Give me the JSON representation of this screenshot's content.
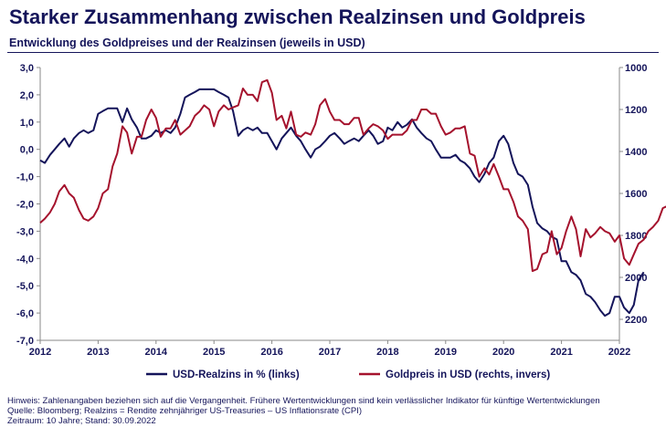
{
  "title": "Starker Zusammenhang zwischen Realzinsen und Goldpreis",
  "subtitle": "Entwicklung des Goldpreises und der Realzinsen (jeweils in USD)",
  "footnotes": [
    "Hinweis: Zahlenangaben beziehen sich auf die Vergangenheit. Frühere Wertentwicklungen sind kein verlässlicher Indikator für künftige Wertentwicklungen",
    "Quelle: Bloomberg; Realzins = Rendite zehnjähriger US-Treasuries – US Inflationsrate (CPI)",
    "Zeitraum: 10 Jahre; Stand: 30.09.2022"
  ],
  "colors": {
    "navy": "#14145a",
    "red": "#a5122d"
  },
  "chart_data": {
    "type": "line",
    "grid": false,
    "legend_position": "bottom",
    "x_ticks": [
      "2012",
      "2013",
      "2014",
      "2015",
      "2016",
      "2017",
      "2018",
      "2019",
      "2020",
      "2021",
      "2022"
    ],
    "y_left": {
      "ticks": [
        "3,0",
        "2,0",
        "1,0",
        "0,0",
        "-1,0",
        "-2,0",
        "-3,0",
        "-4,0",
        "-5,0",
        "-6,0",
        "-7,0"
      ],
      "range": [
        -7,
        3
      ]
    },
    "y_right": {
      "ticks": [
        "1000",
        "1200",
        "1400",
        "1600",
        "1800",
        "2000",
        "2200"
      ],
      "range": [
        1000,
        2300
      ],
      "inverted": true
    },
    "series": [
      {
        "name": "USD-Realzins in % (links)",
        "axis": "left",
        "color": "#14145a",
        "points": [
          [
            2012.0,
            -0.4
          ],
          [
            2012.08,
            -0.5
          ],
          [
            2012.17,
            -0.2
          ],
          [
            2012.25,
            0.0
          ],
          [
            2012.33,
            0.2
          ],
          [
            2012.42,
            0.4
          ],
          [
            2012.5,
            0.1
          ],
          [
            2012.58,
            0.4
          ],
          [
            2012.67,
            0.6
          ],
          [
            2012.75,
            0.7
          ],
          [
            2012.83,
            0.6
          ],
          [
            2012.92,
            0.7
          ],
          [
            2013.0,
            1.3
          ],
          [
            2013.08,
            1.4
          ],
          [
            2013.17,
            1.5
          ],
          [
            2013.25,
            1.5
          ],
          [
            2013.33,
            1.5
          ],
          [
            2013.42,
            1.0
          ],
          [
            2013.5,
            1.5
          ],
          [
            2013.58,
            1.1
          ],
          [
            2013.67,
            0.8
          ],
          [
            2013.75,
            0.4
          ],
          [
            2013.83,
            0.4
          ],
          [
            2013.92,
            0.5
          ],
          [
            2014.0,
            0.7
          ],
          [
            2014.08,
            0.6
          ],
          [
            2014.17,
            0.7
          ],
          [
            2014.25,
            0.6
          ],
          [
            2014.33,
            0.8
          ],
          [
            2014.42,
            1.3
          ],
          [
            2014.5,
            1.9
          ],
          [
            2014.58,
            2.0
          ],
          [
            2014.67,
            2.1
          ],
          [
            2014.75,
            2.2
          ],
          [
            2014.83,
            2.2
          ],
          [
            2014.92,
            2.2
          ],
          [
            2015.0,
            2.2
          ],
          [
            2015.08,
            2.1
          ],
          [
            2015.17,
            2.0
          ],
          [
            2015.25,
            1.9
          ],
          [
            2015.33,
            1.4
          ],
          [
            2015.42,
            0.5
          ],
          [
            2015.5,
            0.7
          ],
          [
            2015.58,
            0.8
          ],
          [
            2015.67,
            0.7
          ],
          [
            2015.75,
            0.8
          ],
          [
            2015.83,
            0.6
          ],
          [
            2015.92,
            0.6
          ],
          [
            2016.0,
            0.3
          ],
          [
            2016.08,
            0.0
          ],
          [
            2016.17,
            0.4
          ],
          [
            2016.25,
            0.6
          ],
          [
            2016.33,
            0.8
          ],
          [
            2016.42,
            0.5
          ],
          [
            2016.5,
            0.3
          ],
          [
            2016.58,
            0.0
          ],
          [
            2016.67,
            -0.3
          ],
          [
            2016.75,
            0.0
          ],
          [
            2016.83,
            0.1
          ],
          [
            2016.92,
            0.3
          ],
          [
            2017.0,
            0.5
          ],
          [
            2017.08,
            0.6
          ],
          [
            2017.17,
            0.4
          ],
          [
            2017.25,
            0.2
          ],
          [
            2017.33,
            0.3
          ],
          [
            2017.42,
            0.4
          ],
          [
            2017.5,
            0.3
          ],
          [
            2017.58,
            0.5
          ],
          [
            2017.67,
            0.7
          ],
          [
            2017.75,
            0.5
          ],
          [
            2017.83,
            0.2
          ],
          [
            2017.92,
            0.3
          ],
          [
            2018.0,
            0.8
          ],
          [
            2018.08,
            0.7
          ],
          [
            2018.17,
            1.0
          ],
          [
            2018.25,
            0.8
          ],
          [
            2018.33,
            0.9
          ],
          [
            2018.42,
            1.1
          ],
          [
            2018.5,
            0.8
          ],
          [
            2018.58,
            0.6
          ],
          [
            2018.67,
            0.4
          ],
          [
            2018.75,
            0.3
          ],
          [
            2018.83,
            0.0
          ],
          [
            2018.92,
            -0.3
          ],
          [
            2019.0,
            -0.3
          ],
          [
            2019.08,
            -0.3
          ],
          [
            2019.17,
            -0.2
          ],
          [
            2019.25,
            -0.4
          ],
          [
            2019.33,
            -0.5
          ],
          [
            2019.42,
            -0.7
          ],
          [
            2019.5,
            -1.0
          ],
          [
            2019.58,
            -1.2
          ],
          [
            2019.67,
            -0.9
          ],
          [
            2019.75,
            -0.5
          ],
          [
            2019.83,
            -0.3
          ],
          [
            2019.92,
            0.3
          ],
          [
            2020.0,
            0.5
          ],
          [
            2020.08,
            0.2
          ],
          [
            2020.17,
            -0.5
          ],
          [
            2020.25,
            -0.9
          ],
          [
            2020.33,
            -1.0
          ],
          [
            2020.42,
            -1.3
          ],
          [
            2020.5,
            -2.1
          ],
          [
            2020.58,
            -2.7
          ],
          [
            2020.67,
            -2.9
          ],
          [
            2020.75,
            -3.0
          ],
          [
            2020.83,
            -3.2
          ],
          [
            2020.92,
            -3.3
          ],
          [
            2021.0,
            -4.1
          ],
          [
            2021.08,
            -4.1
          ],
          [
            2021.17,
            -4.5
          ],
          [
            2021.25,
            -4.6
          ],
          [
            2021.33,
            -4.8
          ],
          [
            2021.42,
            -5.3
          ],
          [
            2021.5,
            -5.4
          ],
          [
            2021.58,
            -5.6
          ],
          [
            2021.67,
            -5.9
          ],
          [
            2021.75,
            -6.1
          ],
          [
            2021.83,
            -6.0
          ],
          [
            2021.92,
            -5.4
          ],
          [
            2022.0,
            -5.4
          ],
          [
            2022.08,
            -5.8
          ],
          [
            2022.17,
            -6.0
          ],
          [
            2022.25,
            -5.7
          ],
          [
            2022.33,
            -4.8
          ],
          [
            2022.42,
            -4.5
          ]
        ]
      },
      {
        "name": "Goldpreis in USD (rechts, invers)",
        "axis": "right",
        "color": "#a5122d",
        "points": [
          [
            2012.0,
            1740
          ],
          [
            2012.08,
            1720
          ],
          [
            2012.17,
            1690
          ],
          [
            2012.25,
            1650
          ],
          [
            2012.33,
            1590
          ],
          [
            2012.42,
            1560
          ],
          [
            2012.5,
            1600
          ],
          [
            2012.58,
            1620
          ],
          [
            2012.67,
            1680
          ],
          [
            2012.75,
            1720
          ],
          [
            2012.83,
            1730
          ],
          [
            2012.92,
            1710
          ],
          [
            2013.0,
            1670
          ],
          [
            2013.08,
            1600
          ],
          [
            2013.17,
            1580
          ],
          [
            2013.25,
            1470
          ],
          [
            2013.33,
            1410
          ],
          [
            2013.42,
            1280
          ],
          [
            2013.5,
            1310
          ],
          [
            2013.58,
            1410
          ],
          [
            2013.67,
            1330
          ],
          [
            2013.75,
            1330
          ],
          [
            2013.83,
            1250
          ],
          [
            2013.92,
            1200
          ],
          [
            2014.0,
            1240
          ],
          [
            2014.08,
            1330
          ],
          [
            2014.17,
            1290
          ],
          [
            2014.25,
            1290
          ],
          [
            2014.33,
            1250
          ],
          [
            2014.42,
            1320
          ],
          [
            2014.5,
            1300
          ],
          [
            2014.58,
            1280
          ],
          [
            2014.67,
            1230
          ],
          [
            2014.75,
            1210
          ],
          [
            2014.83,
            1180
          ],
          [
            2014.92,
            1200
          ],
          [
            2015.0,
            1280
          ],
          [
            2015.08,
            1210
          ],
          [
            2015.17,
            1180
          ],
          [
            2015.25,
            1200
          ],
          [
            2015.33,
            1190
          ],
          [
            2015.42,
            1180
          ],
          [
            2015.5,
            1100
          ],
          [
            2015.58,
            1130
          ],
          [
            2015.67,
            1130
          ],
          [
            2015.75,
            1160
          ],
          [
            2015.83,
            1070
          ],
          [
            2015.92,
            1060
          ],
          [
            2016.0,
            1120
          ],
          [
            2016.08,
            1250
          ],
          [
            2016.17,
            1230
          ],
          [
            2016.25,
            1290
          ],
          [
            2016.33,
            1210
          ],
          [
            2016.42,
            1320
          ],
          [
            2016.5,
            1330
          ],
          [
            2016.58,
            1310
          ],
          [
            2016.67,
            1320
          ],
          [
            2016.75,
            1270
          ],
          [
            2016.83,
            1180
          ],
          [
            2016.92,
            1150
          ],
          [
            2017.0,
            1210
          ],
          [
            2017.08,
            1250
          ],
          [
            2017.17,
            1250
          ],
          [
            2017.25,
            1270
          ],
          [
            2017.33,
            1270
          ],
          [
            2017.42,
            1240
          ],
          [
            2017.5,
            1240
          ],
          [
            2017.58,
            1320
          ],
          [
            2017.67,
            1290
          ],
          [
            2017.75,
            1270
          ],
          [
            2017.83,
            1280
          ],
          [
            2017.92,
            1300
          ],
          [
            2018.0,
            1340
          ],
          [
            2018.08,
            1320
          ],
          [
            2018.17,
            1320
          ],
          [
            2018.25,
            1320
          ],
          [
            2018.33,
            1300
          ],
          [
            2018.42,
            1250
          ],
          [
            2018.5,
            1250
          ],
          [
            2018.58,
            1200
          ],
          [
            2018.67,
            1200
          ],
          [
            2018.75,
            1220
          ],
          [
            2018.83,
            1220
          ],
          [
            2018.92,
            1280
          ],
          [
            2019.0,
            1320
          ],
          [
            2019.08,
            1310
          ],
          [
            2019.17,
            1290
          ],
          [
            2019.25,
            1290
          ],
          [
            2019.33,
            1280
          ],
          [
            2019.42,
            1410
          ],
          [
            2019.5,
            1420
          ],
          [
            2019.58,
            1520
          ],
          [
            2019.67,
            1480
          ],
          [
            2019.75,
            1510
          ],
          [
            2019.83,
            1460
          ],
          [
            2019.92,
            1520
          ],
          [
            2020.0,
            1580
          ],
          [
            2020.08,
            1580
          ],
          [
            2020.17,
            1640
          ],
          [
            2020.25,
            1710
          ],
          [
            2020.33,
            1730
          ],
          [
            2020.42,
            1770
          ],
          [
            2020.5,
            1970
          ],
          [
            2020.58,
            1960
          ],
          [
            2020.67,
            1890
          ],
          [
            2020.75,
            1880
          ],
          [
            2020.83,
            1780
          ],
          [
            2020.92,
            1890
          ],
          [
            2021.0,
            1860
          ],
          [
            2021.08,
            1780
          ],
          [
            2021.17,
            1710
          ],
          [
            2021.25,
            1770
          ],
          [
            2021.33,
            1900
          ],
          [
            2021.42,
            1770
          ],
          [
            2021.5,
            1810
          ],
          [
            2021.58,
            1790
          ],
          [
            2021.67,
            1760
          ],
          [
            2021.75,
            1780
          ],
          [
            2021.83,
            1790
          ],
          [
            2021.92,
            1830
          ],
          [
            2022.0,
            1800
          ],
          [
            2022.08,
            1910
          ],
          [
            2022.17,
            1940
          ],
          [
            2022.25,
            1890
          ],
          [
            2022.33,
            1840
          ],
          [
            2022.42,
            1820
          ],
          [
            2022.5,
            1780
          ],
          [
            2022.58,
            1760
          ],
          [
            2022.67,
            1730
          ],
          [
            2022.75,
            1670
          ],
          [
            2022.83,
            1660
          ]
        ]
      }
    ]
  }
}
